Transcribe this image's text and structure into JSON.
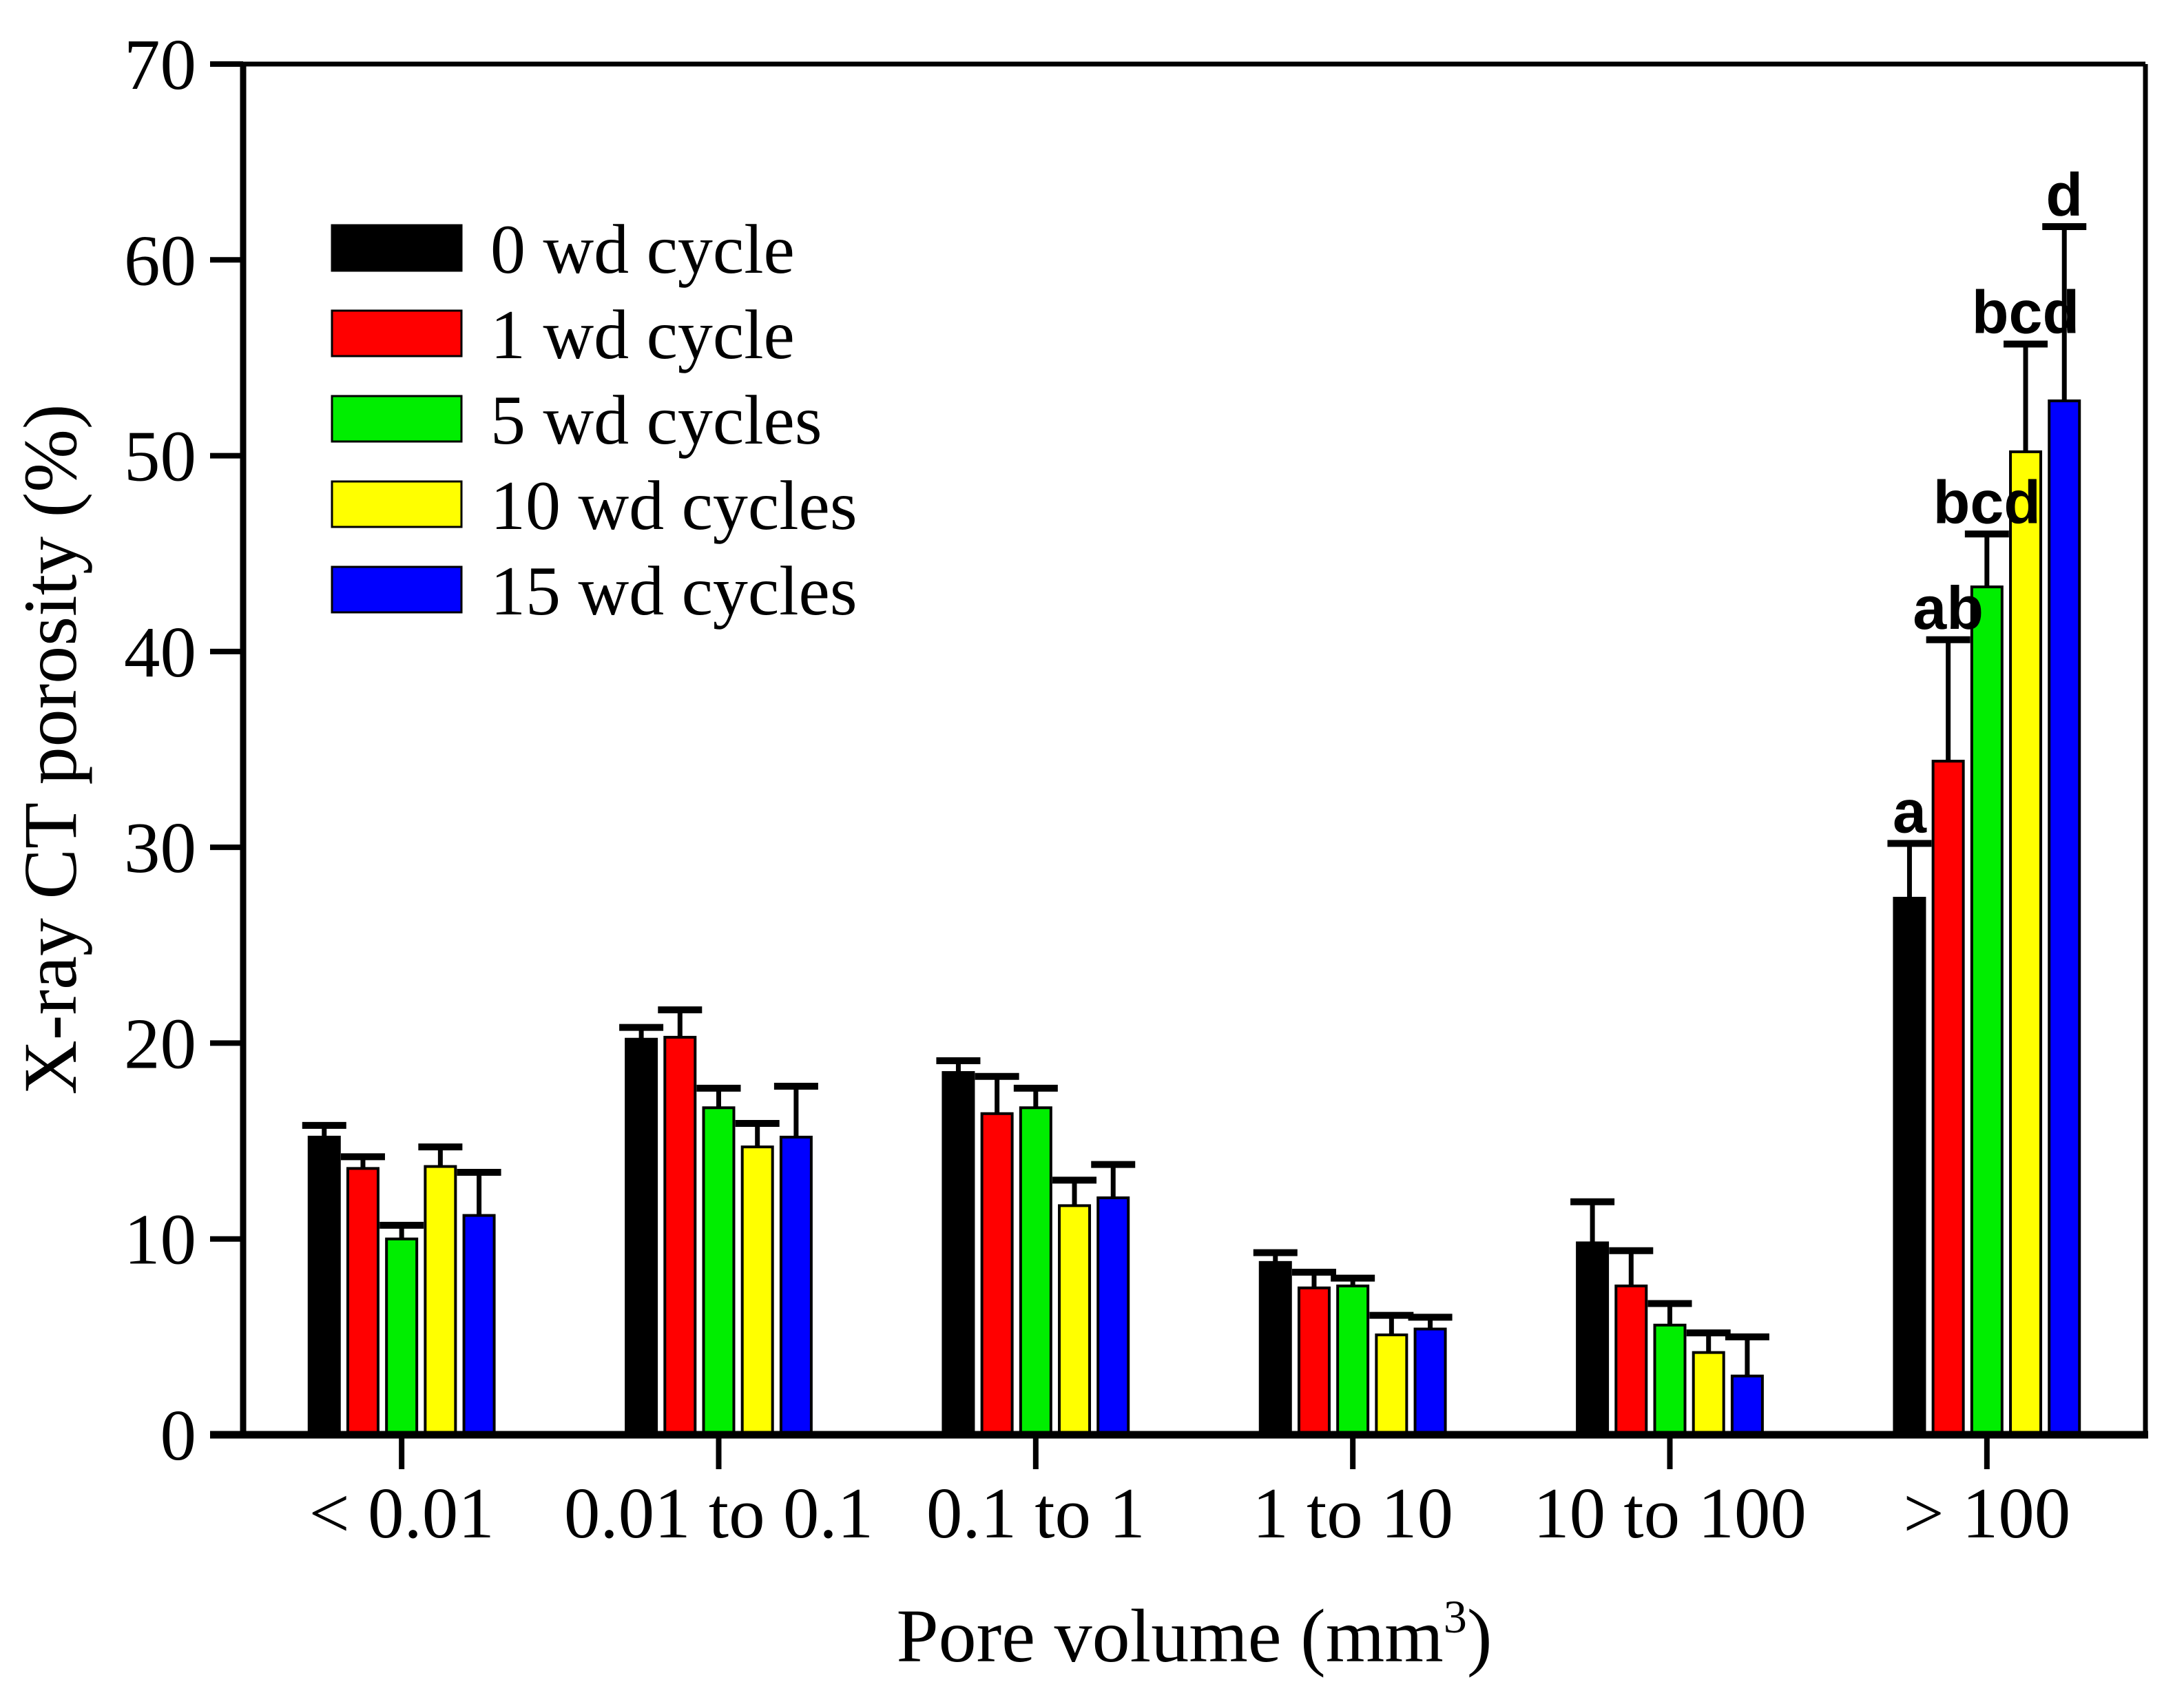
{
  "chart_data": {
    "type": "bar",
    "title": "",
    "ylabel": "X-ray CT porosity (%)",
    "xlabel": {
      "base": "Pore volume (mm",
      "sup": "3",
      "end": ")",
      "text": "Pore volume (mm3)"
    },
    "ylim": [
      0,
      70
    ],
    "ytick_step": 10,
    "yticks": [
      "0",
      "10",
      "20",
      "30",
      "40",
      "50",
      "60",
      "70"
    ],
    "grid": false,
    "legend_position": "top-left",
    "categories": [
      "< 0.01",
      "0.01 to 0.1",
      "0.1 to 1",
      "1 to 10",
      "10 to 100",
      "> 100"
    ],
    "series": [
      {
        "name": "0 wd cycle",
        "color": "#000000",
        "values": [
          15.2,
          20.2,
          18.5,
          8.8,
          9.8,
          27.4
        ],
        "errors": [
          0.6,
          0.6,
          0.6,
          0.5,
          2.1,
          2.8
        ]
      },
      {
        "name": "1 wd cycle",
        "color": "#ff0000",
        "values": [
          13.6,
          20.3,
          16.4,
          7.5,
          7.6,
          34.4
        ],
        "errors": [
          0.6,
          1.4,
          1.9,
          0.8,
          1.8,
          6.2
        ]
      },
      {
        "name": "5 wd cycles",
        "color": "#00ee00",
        "values": [
          10.0,
          16.7,
          16.7,
          7.6,
          5.6,
          43.3
        ],
        "errors": [
          0.7,
          1.0,
          1.0,
          0.4,
          1.1,
          2.7
        ]
      },
      {
        "name": "10 wd cycles",
        "color": "#ffff00",
        "values": [
          13.7,
          14.7,
          11.7,
          5.1,
          4.2,
          50.2
        ],
        "errors": [
          1.0,
          1.2,
          1.3,
          1.0,
          1.0,
          5.5
        ]
      },
      {
        "name": "15 wd cycles",
        "color": "#0000ff",
        "values": [
          11.2,
          15.2,
          12.1,
          5.4,
          3.0,
          52.8
        ],
        "errors": [
          2.2,
          2.6,
          1.7,
          0.6,
          2.0,
          8.9
        ]
      }
    ],
    "significance": {
      "category": "> 100",
      "category_index": 5,
      "labels": [
        "a",
        "ab",
        "bcd",
        "bcd",
        "d"
      ]
    },
    "colors": {
      "axis": "#000000",
      "background": "#ffffff",
      "bar_stroke": "#000000",
      "error_bar": "#000000"
    }
  }
}
